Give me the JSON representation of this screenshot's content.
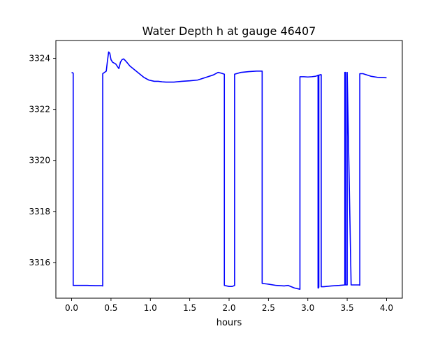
{
  "chart_data": {
    "type": "line",
    "title": "Water Depth h at gauge 46407",
    "xlabel": "hours",
    "ylabel": "",
    "xlim": [
      -0.2,
      4.2
    ],
    "ylim": [
      3314.6,
      3324.7
    ],
    "xticks": [
      0.0,
      0.5,
      1.0,
      1.5,
      2.0,
      2.5,
      3.0,
      3.5,
      4.0
    ],
    "xtick_labels": [
      "0.0",
      "0.5",
      "1.0",
      "1.5",
      "2.0",
      "2.5",
      "3.0",
      "3.5",
      "4.0"
    ],
    "yticks": [
      3316,
      3318,
      3320,
      3322,
      3324
    ],
    "ytick_labels": [
      "3316",
      "3318",
      "3320",
      "3322",
      "3324"
    ],
    "grid": false,
    "series": [
      {
        "color": "#0000ff",
        "x": [
          0.0,
          0.02,
          0.02,
          0.1,
          0.2,
          0.3,
          0.38,
          0.395,
          0.395,
          0.44,
          0.455,
          0.47,
          0.485,
          0.5,
          0.52,
          0.56,
          0.6,
          0.62,
          0.64,
          0.66,
          0.68,
          0.7,
          0.74,
          0.8,
          0.86,
          0.92,
          0.98,
          1.05,
          1.1,
          1.15,
          1.2,
          1.3,
          1.4,
          1.5,
          1.6,
          1.7,
          1.8,
          1.86,
          1.9,
          1.94,
          1.94,
          1.97,
          2.0,
          2.04,
          2.07,
          2.07,
          2.15,
          2.25,
          2.35,
          2.42,
          2.42,
          2.5,
          2.6,
          2.7,
          2.75,
          2.83,
          2.9,
          2.9,
          2.95,
          3.0,
          3.05,
          3.1,
          3.12,
          3.13,
          3.13,
          3.135,
          3.14,
          3.14,
          3.16,
          3.17,
          3.17,
          3.2,
          3.3,
          3.4,
          3.47,
          3.47,
          3.48,
          3.48,
          3.5,
          3.5,
          3.55,
          3.65,
          3.66,
          3.66,
          3.7,
          3.8,
          3.9,
          4.0
        ],
        "y": [
          3323.45,
          3323.42,
          3315.1,
          3315.1,
          3315.1,
          3315.09,
          3315.09,
          3315.08,
          3323.4,
          3323.5,
          3323.9,
          3324.25,
          3324.2,
          3323.95,
          3323.85,
          3323.78,
          3323.6,
          3323.85,
          3323.95,
          3323.98,
          3323.92,
          3323.85,
          3323.7,
          3323.55,
          3323.4,
          3323.25,
          3323.15,
          3323.1,
          3323.1,
          3323.08,
          3323.07,
          3323.07,
          3323.1,
          3323.12,
          3323.15,
          3323.25,
          3323.35,
          3323.45,
          3323.42,
          3323.38,
          3315.1,
          3315.08,
          3315.06,
          3315.06,
          3315.1,
          3323.38,
          3323.45,
          3323.48,
          3323.5,
          3323.5,
          3315.18,
          3315.15,
          3315.1,
          3315.08,
          3315.1,
          3315.0,
          3314.95,
          3323.28,
          3323.28,
          3323.27,
          3323.28,
          3323.3,
          3323.32,
          3323.34,
          3315.0,
          3315.0,
          3315.03,
          3323.34,
          3323.36,
          3323.36,
          3315.05,
          3315.05,
          3315.08,
          3315.1,
          3315.12,
          3323.45,
          3323.45,
          3315.12,
          3315.12,
          3323.45,
          3315.12,
          3315.12,
          3315.11,
          3323.4,
          3323.4,
          3323.3,
          3323.25,
          3323.24
        ]
      }
    ]
  }
}
